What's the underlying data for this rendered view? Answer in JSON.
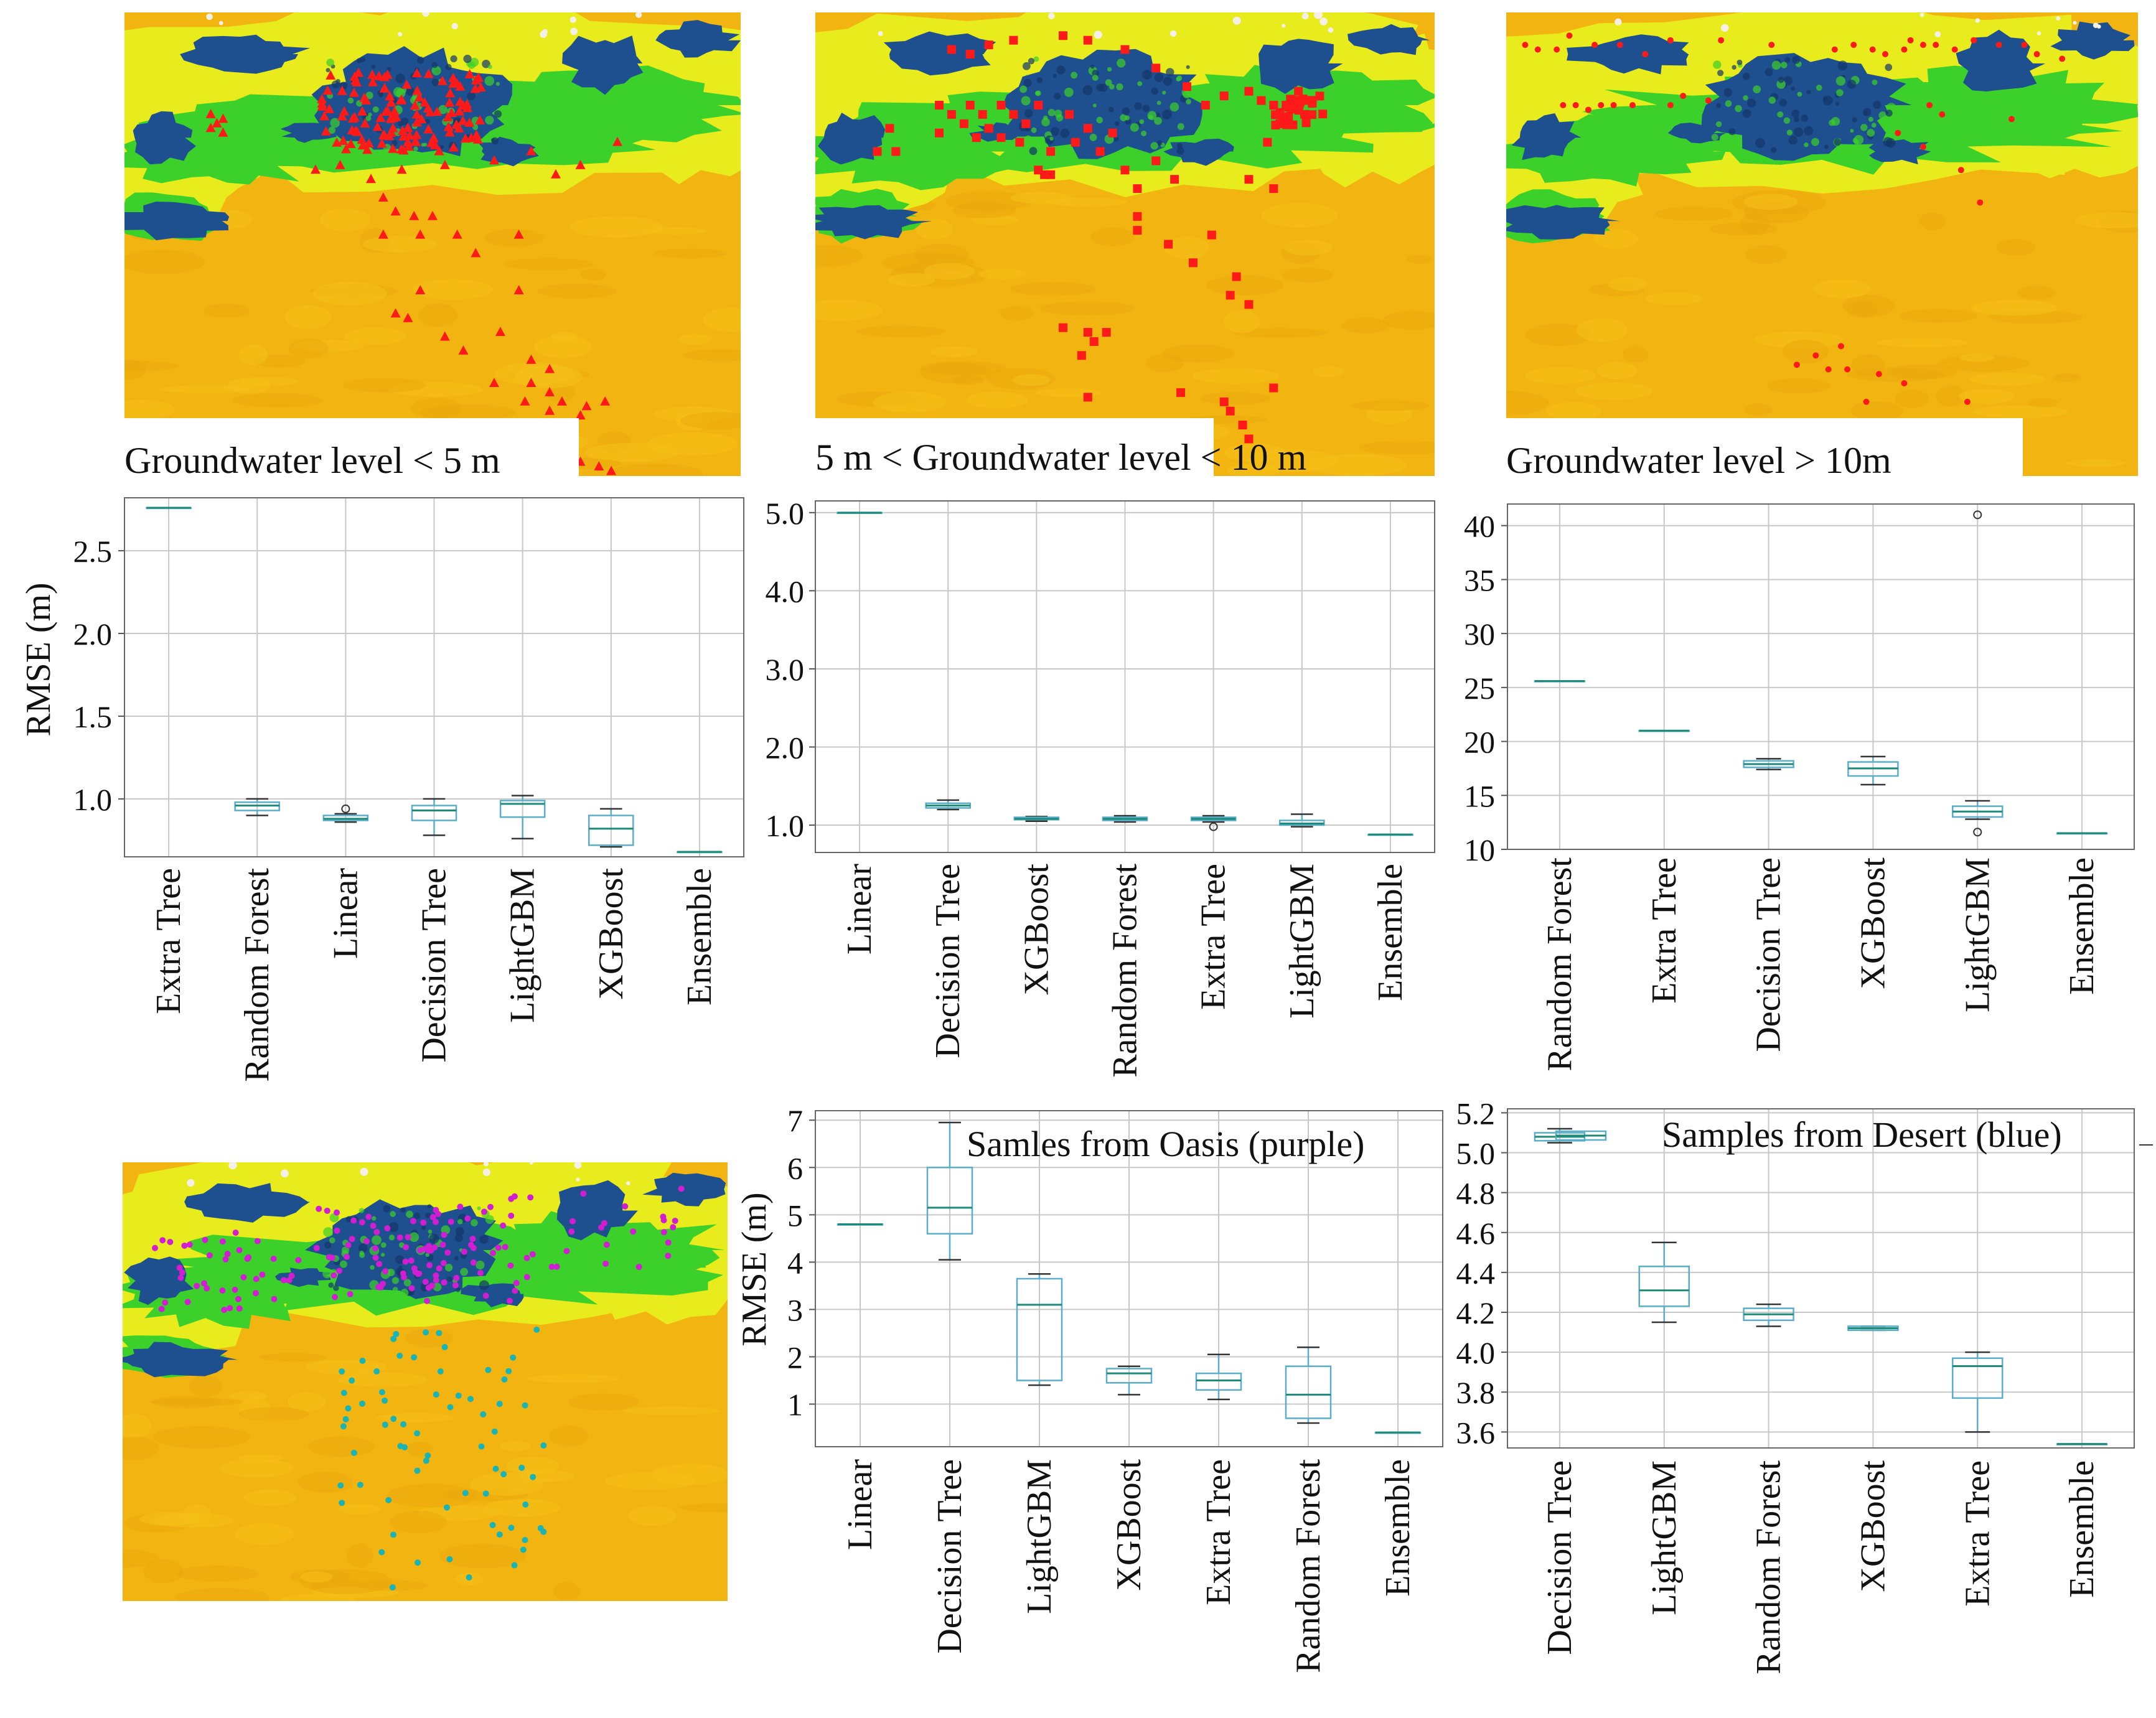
{
  "colors": {
    "desert": "#f2b410",
    "veg_light": "#e8ec1c",
    "veg_green": "#3cd02a",
    "water_blue": "#1e4f8e",
    "marker_red": "#ff1a1a",
    "marker_purple": "#d21ed2",
    "marker_cyan": "#1ab4b4",
    "box": "#5aaec8",
    "median": "#1d8a7a",
    "grid": "#c8c8c8"
  },
  "maps": [
    {
      "caption": "Groundwater level < 5 m",
      "marker": "triangle"
    },
    {
      "caption": "5 m < Groundwater level  < 10 m",
      "marker": "square"
    },
    {
      "caption": "Groundwater level > 10m",
      "marker": "dot"
    },
    {
      "caption": "",
      "marker": "oasis-desert"
    }
  ],
  "chart_data": [
    {
      "type": "box",
      "title": "",
      "ylabel": "RMSE (m)",
      "ylim": [
        0.65,
        2.82
      ],
      "yticks": [
        1.0,
        1.5,
        2.0,
        2.5
      ],
      "ytick_labels": [
        "1.0",
        "1.5",
        "2.0",
        "2.5"
      ],
      "categories": [
        "Extra Tree",
        "Random Forest",
        "Linear",
        "Decision Tree",
        "LightGBM",
        "XGBoost",
        "Ensemble"
      ],
      "boxes": [
        {
          "min": 2.76,
          "q1": 2.76,
          "median": 2.76,
          "q3": 2.76,
          "max": 2.76,
          "outliers": []
        },
        {
          "min": 0.9,
          "q1": 0.93,
          "median": 0.96,
          "q3": 0.98,
          "max": 1.0,
          "outliers": []
        },
        {
          "min": 0.86,
          "q1": 0.87,
          "median": 0.88,
          "q3": 0.9,
          "max": 0.91,
          "outliers": [
            0.94
          ]
        },
        {
          "min": 0.78,
          "q1": 0.87,
          "median": 0.93,
          "q3": 0.96,
          "max": 1.0,
          "outliers": []
        },
        {
          "min": 0.76,
          "q1": 0.89,
          "median": 0.97,
          "q3": 0.99,
          "max": 1.02,
          "outliers": []
        },
        {
          "min": 0.71,
          "q1": 0.72,
          "median": 0.82,
          "q3": 0.9,
          "max": 0.94,
          "outliers": []
        },
        {
          "min": 0.68,
          "q1": 0.68,
          "median": 0.68,
          "q3": 0.68,
          "max": 0.68,
          "outliers": []
        }
      ]
    },
    {
      "type": "box",
      "title": "",
      "ylabel": "",
      "ylim": [
        0.65,
        5.15
      ],
      "yticks": [
        1.0,
        2.0,
        3.0,
        4.0,
        5.0
      ],
      "ytick_labels": [
        "1.0",
        "2.0",
        "3.0",
        "4.0",
        "5.0"
      ],
      "categories": [
        "Linear",
        "Decision Tree",
        "XGBoost",
        "Random Forest",
        "Extra Tree",
        "LightGBM",
        "Ensemble"
      ],
      "boxes": [
        {
          "min": 5.0,
          "q1": 5.0,
          "median": 5.0,
          "q3": 5.0,
          "max": 5.0,
          "outliers": []
        },
        {
          "min": 1.2,
          "q1": 1.22,
          "median": 1.25,
          "q3": 1.28,
          "max": 1.32,
          "outliers": []
        },
        {
          "min": 1.05,
          "q1": 1.07,
          "median": 1.08,
          "q3": 1.1,
          "max": 1.11,
          "outliers": []
        },
        {
          "min": 1.04,
          "q1": 1.06,
          "median": 1.08,
          "q3": 1.1,
          "max": 1.12,
          "outliers": []
        },
        {
          "min": 1.04,
          "q1": 1.06,
          "median": 1.08,
          "q3": 1.1,
          "max": 1.12,
          "outliers": [
            0.98
          ]
        },
        {
          "min": 0.98,
          "q1": 1.0,
          "median": 1.02,
          "q3": 1.06,
          "max": 1.14,
          "outliers": []
        },
        {
          "min": 0.88,
          "q1": 0.88,
          "median": 0.88,
          "q3": 0.88,
          "max": 0.88,
          "outliers": []
        }
      ]
    },
    {
      "type": "box",
      "title": "",
      "ylabel": "",
      "ylim": [
        10,
        42
      ],
      "yticks": [
        10,
        15,
        20,
        25,
        30,
        35,
        40
      ],
      "ytick_labels": [
        "10",
        "15",
        "20",
        "25",
        "30",
        "35",
        "40"
      ],
      "categories": [
        "Random Forest",
        "Extra Tree",
        "Decision Tree",
        "XGBoost",
        "LightGBM",
        "Ensemble"
      ],
      "boxes": [
        {
          "min": 25.6,
          "q1": 25.6,
          "median": 25.6,
          "q3": 25.6,
          "max": 25.6,
          "outliers": []
        },
        {
          "min": 21.0,
          "q1": 21.0,
          "median": 21.0,
          "q3": 21.0,
          "max": 21.0,
          "outliers": []
        },
        {
          "min": 17.4,
          "q1": 17.6,
          "median": 17.9,
          "q3": 18.2,
          "max": 18.4,
          "outliers": []
        },
        {
          "min": 16.0,
          "q1": 16.8,
          "median": 17.5,
          "q3": 18.1,
          "max": 18.6,
          "outliers": []
        },
        {
          "min": 12.8,
          "q1": 13.0,
          "median": 13.5,
          "q3": 14.0,
          "max": 14.5,
          "outliers": [
            41.0,
            11.6
          ]
        },
        {
          "min": 11.5,
          "q1": 11.5,
          "median": 11.5,
          "q3": 11.5,
          "max": 11.5,
          "outliers": []
        }
      ]
    },
    {
      "type": "box",
      "title": "Samles from Oasis (purple)",
      "ylabel": "RMSE (m)",
      "ylim": [
        0.1,
        7.2
      ],
      "yticks": [
        1,
        2,
        3,
        4,
        5,
        6,
        7
      ],
      "ytick_labels": [
        "1",
        "2",
        "3",
        "4",
        "5",
        "6",
        "7"
      ],
      "categories": [
        "Linear",
        "Decision Tree",
        "LightGBM",
        "XGBoost",
        "Extra Tree",
        "Random Forest",
        "Ensemble"
      ],
      "boxes": [
        {
          "min": 4.8,
          "q1": 4.8,
          "median": 4.8,
          "q3": 4.8,
          "max": 4.8,
          "outliers": []
        },
        {
          "min": 4.05,
          "q1": 4.6,
          "median": 5.15,
          "q3": 6.0,
          "max": 6.95,
          "outliers": []
        },
        {
          "min": 1.4,
          "q1": 1.5,
          "median": 3.1,
          "q3": 3.65,
          "max": 3.75,
          "outliers": []
        },
        {
          "min": 1.2,
          "q1": 1.45,
          "median": 1.65,
          "q3": 1.75,
          "max": 1.8,
          "outliers": []
        },
        {
          "min": 1.1,
          "q1": 1.3,
          "median": 1.5,
          "q3": 1.65,
          "max": 2.05,
          "outliers": []
        },
        {
          "min": 0.6,
          "q1": 0.7,
          "median": 1.2,
          "q3": 1.8,
          "max": 2.2,
          "outliers": []
        },
        {
          "min": 0.4,
          "q1": 0.4,
          "median": 0.4,
          "q3": 0.4,
          "max": 0.4,
          "outliers": []
        }
      ]
    },
    {
      "type": "box",
      "title": "Samples from Desert (blue)",
      "ylabel": "",
      "ylim": [
        3.52,
        5.22
      ],
      "yticks": [
        3.6,
        3.8,
        4.0,
        4.2,
        4.4,
        4.6,
        4.8,
        5.0,
        5.2
      ],
      "ytick_labels": [
        "3.6",
        "3.8",
        "4.0",
        "4.2",
        "4.4",
        "4.6",
        "4.8",
        "5.0",
        "5.2"
      ],
      "categories": [
        "Decision Tree",
        "LightGBM",
        "Random Forest",
        "XGBoost",
        "Extra Tree",
        "Ensemble"
      ],
      "boxes": [
        {
          "min": 5.05,
          "q1": 5.06,
          "median": 5.08,
          "q3": 5.1,
          "max": 5.12,
          "outliers": []
        },
        {
          "min": 4.15,
          "q1": 4.23,
          "median": 4.31,
          "q3": 4.43,
          "max": 4.55,
          "outliers": []
        },
        {
          "min": 4.13,
          "q1": 4.16,
          "median": 4.19,
          "q3": 4.22,
          "max": 4.24,
          "outliers": []
        },
        {
          "min": 4.11,
          "q1": 4.11,
          "median": 4.12,
          "q3": 4.13,
          "max": 4.13,
          "outliers": []
        },
        {
          "min": 3.6,
          "q1": 3.77,
          "median": 3.93,
          "q3": 3.97,
          "max": 4.0,
          "outliers": []
        },
        {
          "min": 3.54,
          "q1": 3.54,
          "median": 3.54,
          "q3": 3.54,
          "max": 3.54,
          "outliers": []
        }
      ]
    }
  ]
}
